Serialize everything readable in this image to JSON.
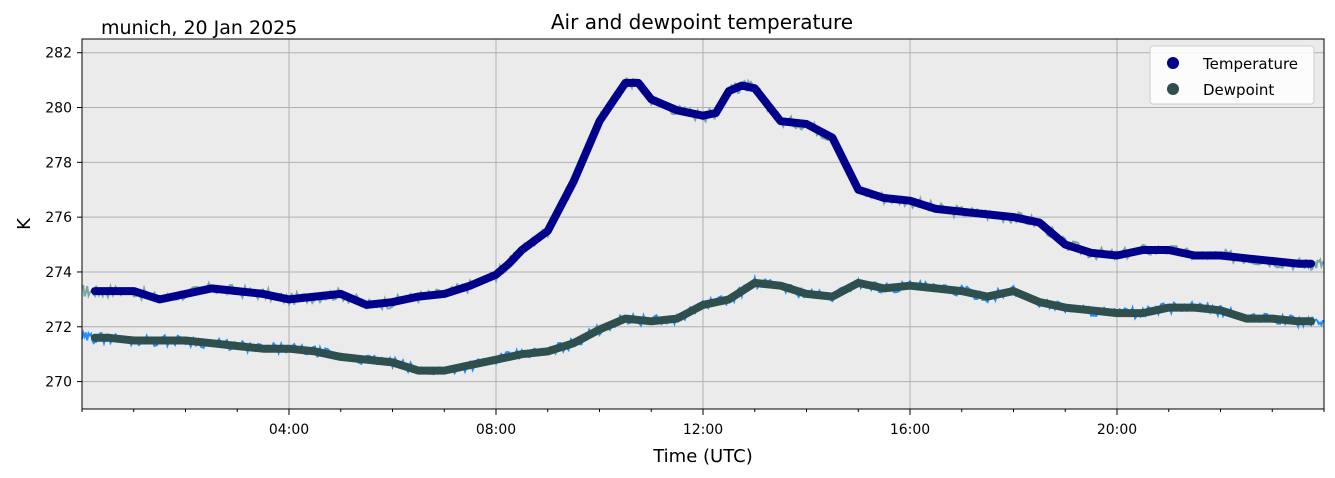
{
  "chart_data": {
    "type": "line",
    "title": "Air and dewpoint temperature",
    "subtitle": "munich, 20 Jan 2025",
    "xlabel": "Time (UTC)",
    "ylabel": "K",
    "xlim_hours": [
      0,
      24
    ],
    "ylim": [
      269,
      282.5
    ],
    "x_ticks": [
      {
        "hour": 4,
        "label": "04:00"
      },
      {
        "hour": 8,
        "label": "08:00"
      },
      {
        "hour": 12,
        "label": "12:00"
      },
      {
        "hour": 16,
        "label": "16:00"
      },
      {
        "hour": 20,
        "label": "20:00"
      }
    ],
    "y_ticks": [
      270,
      272,
      274,
      276,
      278,
      280,
      282
    ],
    "grid": true,
    "legend": {
      "position": "top-right",
      "entries": [
        {
          "name": "Temperature",
          "color": "#00008b"
        },
        {
          "name": "Dewpoint",
          "color": "#2f4f4f"
        }
      ]
    },
    "colors": {
      "temperature": "#00008b",
      "temperature_raw": "#7aa8a8",
      "dewpoint": "#2f4f4f",
      "dewpoint_raw": "#1e90ff",
      "plot_background": "#ebebeb",
      "grid": "#b0b0b0"
    },
    "series": [
      {
        "name": "Temperature",
        "x_hours": [
          0.25,
          0.5,
          1.0,
          1.5,
          2.0,
          2.5,
          3.0,
          3.5,
          4.0,
          4.5,
          5.0,
          5.5,
          6.0,
          6.5,
          7.0,
          7.5,
          8.0,
          8.25,
          8.5,
          9.0,
          9.5,
          10.0,
          10.25,
          10.5,
          10.75,
          11.0,
          11.5,
          12.0,
          12.25,
          12.5,
          12.75,
          13.0,
          13.5,
          14.0,
          14.5,
          15.0,
          15.5,
          16.0,
          16.5,
          17.0,
          17.5,
          18.0,
          18.5,
          19.0,
          19.5,
          20.0,
          20.5,
          21.0,
          21.5,
          22.0,
          22.5,
          23.0,
          23.5,
          23.75
        ],
        "values": [
          273.3,
          273.3,
          273.3,
          273.0,
          273.2,
          273.4,
          273.3,
          273.2,
          273.0,
          273.1,
          273.2,
          272.8,
          272.9,
          273.1,
          273.2,
          273.5,
          273.9,
          274.3,
          274.8,
          275.5,
          277.3,
          279.5,
          280.2,
          280.9,
          280.9,
          280.3,
          279.9,
          279.7,
          279.8,
          280.6,
          280.8,
          280.7,
          279.5,
          279.4,
          278.9,
          277.0,
          276.7,
          276.6,
          276.3,
          276.2,
          276.1,
          276.0,
          275.8,
          275.0,
          274.7,
          274.6,
          274.8,
          274.8,
          274.6,
          274.6,
          274.5,
          274.4,
          274.3,
          274.3
        ]
      },
      {
        "name": "Dewpoint",
        "x_hours": [
          0.25,
          0.5,
          1.0,
          1.5,
          2.0,
          2.5,
          3.0,
          3.5,
          4.0,
          4.5,
          5.0,
          5.5,
          6.0,
          6.5,
          7.0,
          7.5,
          8.0,
          8.5,
          9.0,
          9.5,
          10.0,
          10.5,
          11.0,
          11.5,
          12.0,
          12.5,
          13.0,
          13.5,
          14.0,
          14.5,
          15.0,
          15.5,
          16.0,
          16.5,
          17.0,
          17.5,
          18.0,
          18.5,
          19.0,
          19.5,
          20.0,
          20.5,
          21.0,
          21.5,
          22.0,
          22.5,
          23.0,
          23.5,
          23.75
        ],
        "values": [
          271.6,
          271.6,
          271.5,
          271.5,
          271.5,
          271.4,
          271.3,
          271.2,
          271.2,
          271.1,
          270.9,
          270.8,
          270.7,
          270.4,
          270.4,
          270.6,
          270.8,
          271.0,
          271.1,
          271.4,
          271.9,
          272.3,
          272.2,
          272.3,
          272.8,
          273.0,
          273.6,
          273.5,
          273.2,
          273.1,
          273.6,
          273.4,
          273.5,
          273.4,
          273.3,
          273.1,
          273.3,
          272.9,
          272.7,
          272.6,
          272.5,
          272.5,
          272.7,
          272.7,
          272.6,
          272.3,
          272.3,
          272.2,
          272.2
        ]
      }
    ]
  }
}
